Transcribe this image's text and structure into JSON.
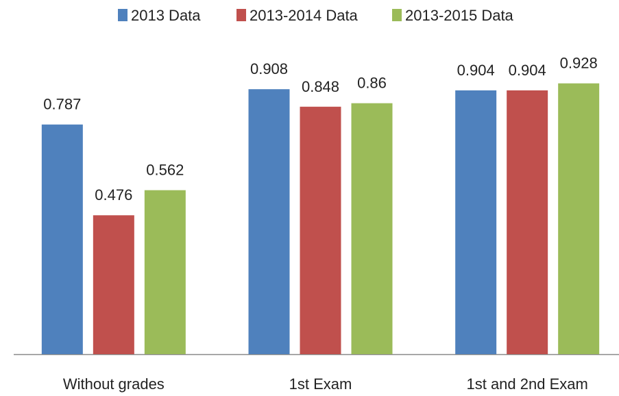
{
  "chart_data": {
    "type": "bar",
    "categories": [
      "Without grades",
      "1st Exam",
      "1st and 2nd Exam"
    ],
    "series": [
      {
        "name": "2013 Data",
        "color": "#4f81bd",
        "values": [
          0.787,
          0.908,
          0.904
        ]
      },
      {
        "name": "2013-2014 Data",
        "color": "#c0504d",
        "values": [
          0.476,
          0.848,
          0.904
        ]
      },
      {
        "name": "2013-2015 Data",
        "color": "#9bbb59",
        "values": [
          0.562,
          0.86,
          0.928
        ]
      }
    ],
    "ylim": [
      0,
      1
    ],
    "legend": "top"
  }
}
